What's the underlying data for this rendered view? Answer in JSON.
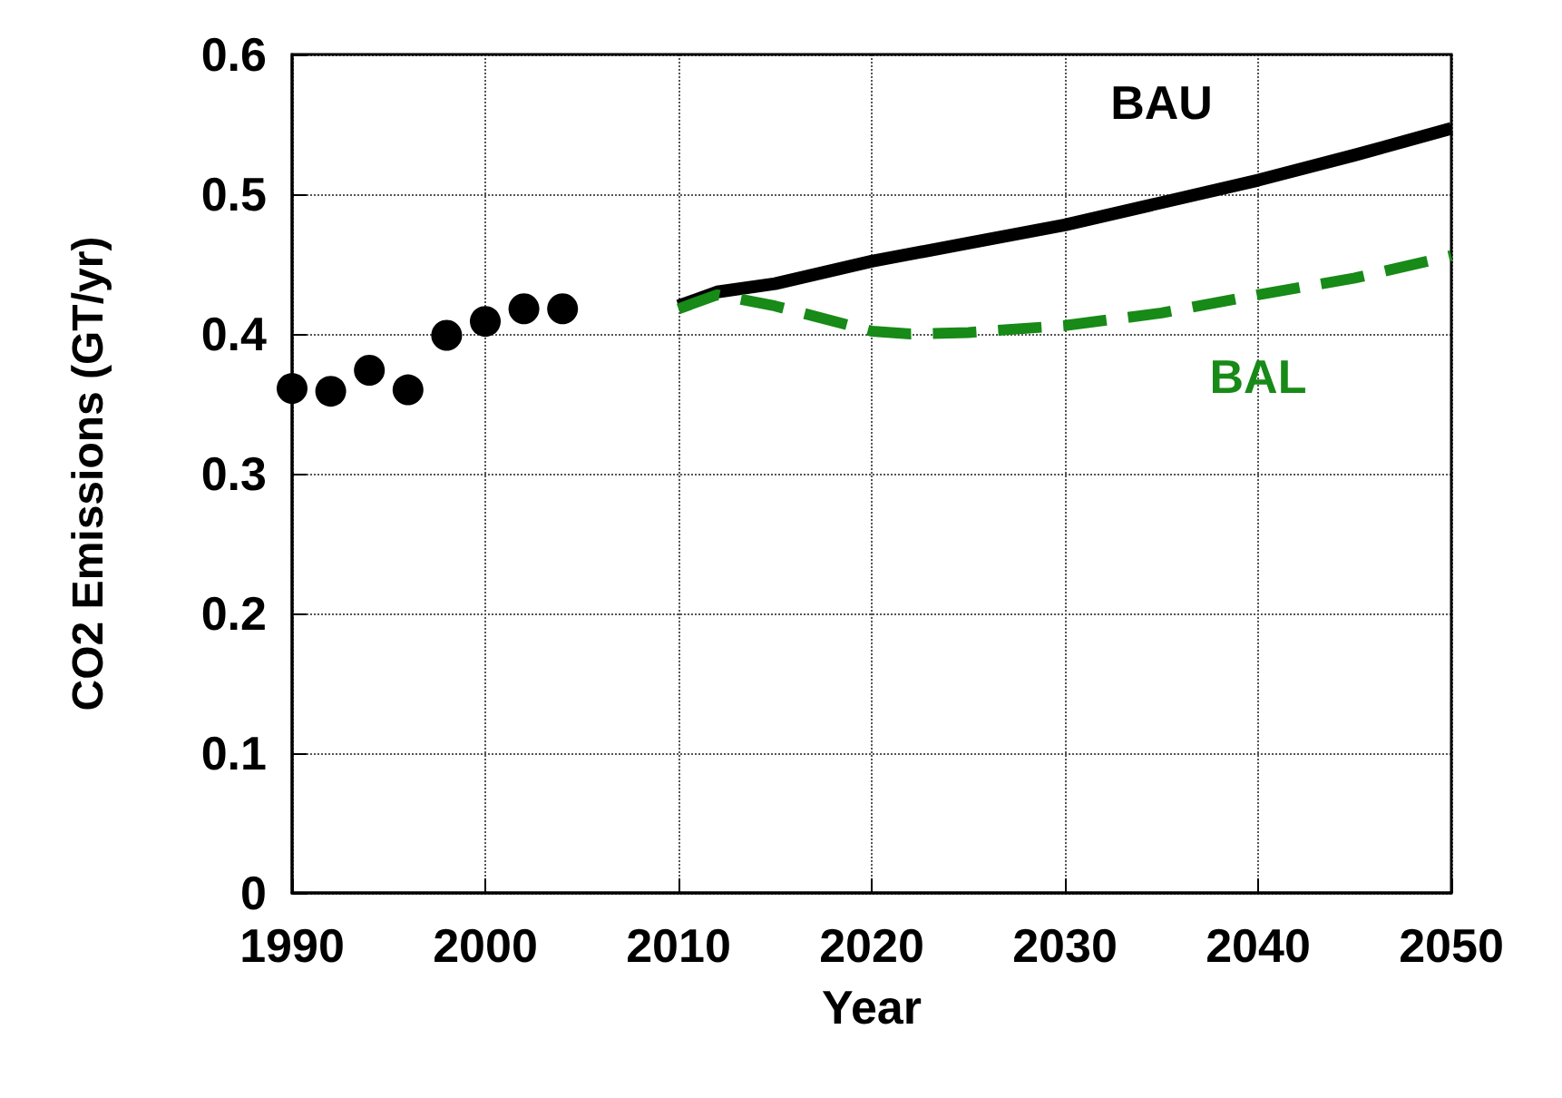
{
  "chart_data": {
    "type": "line",
    "xlabel": "Year",
    "ylabel": "CO2 Emissions (GT/yr)",
    "xlim": [
      1990,
      2050
    ],
    "xticks": [
      1990,
      2000,
      2010,
      2020,
      2030,
      2040,
      2050
    ],
    "ylim": [
      0,
      0.6
    ],
    "yticks": [
      0,
      0.1,
      0.2,
      0.3,
      0.4,
      0.5,
      0.6
    ],
    "grid": true,
    "series": [
      {
        "type": "scatter",
        "color": "#000000",
        "marker": "circle",
        "x": [
          1990,
          1992,
          1994,
          1996,
          1998,
          2000,
          2002,
          2004
        ],
        "values": [
          0.361,
          0.359,
          0.374,
          0.36,
          0.399,
          0.409,
          0.418,
          0.418
        ]
      },
      {
        "name": "BAU",
        "color": "#000000",
        "line_style": "solid",
        "x": [
          2010,
          2012,
          2015,
          2020,
          2025,
          2030,
          2035,
          2040,
          2045,
          2050
        ],
        "values": [
          0.42,
          0.43,
          0.436,
          0.452,
          0.465,
          0.478,
          0.494,
          0.51,
          0.528,
          0.547
        ]
      },
      {
        "name": "BAL",
        "color": "#178a17",
        "line_style": "dashed",
        "x": [
          2010,
          2012,
          2015,
          2020,
          2022,
          2025,
          2030,
          2035,
          2040,
          2045,
          2050
        ],
        "values": [
          0.418,
          0.428,
          0.42,
          0.402,
          0.4,
          0.401,
          0.406,
          0.415,
          0.428,
          0.44,
          0.456
        ]
      }
    ]
  }
}
